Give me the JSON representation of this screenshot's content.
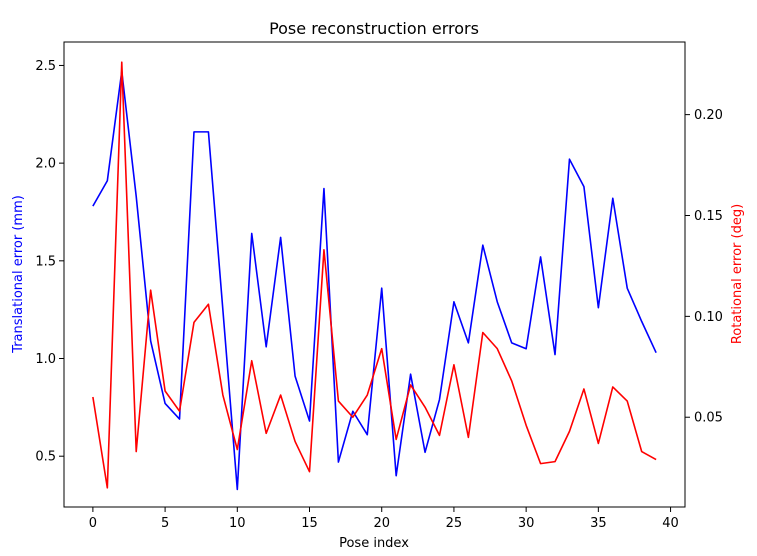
{
  "chart_data": {
    "type": "line",
    "title": "Pose reconstruction errors",
    "xlabel": "Pose index",
    "xlim": [
      -2,
      41
    ],
    "xticks": [
      0,
      5,
      10,
      15,
      20,
      25,
      30,
      35,
      40
    ],
    "y_left": {
      "label": "Translational error (mm)",
      "color": "#0000ff",
      "lim": [
        0.24,
        2.62
      ],
      "ticks": [
        0.5,
        1.0,
        1.5,
        2.0,
        2.5
      ],
      "tick_labels": [
        "0.5",
        "1.0",
        "1.5",
        "2.0",
        "2.5"
      ]
    },
    "y_right": {
      "label": "Rotational error (deg)",
      "color": "#ff0000",
      "lim": [
        0.0055,
        0.236
      ],
      "ticks": [
        0.05,
        0.1,
        0.15,
        0.2
      ],
      "tick_labels": [
        "0.05",
        "0.10",
        "0.15",
        "0.20"
      ]
    },
    "grid": false,
    "series": [
      {
        "axis": "left",
        "color": "#0000ff",
        "x": [
          0,
          1,
          2,
          3,
          4,
          5,
          6,
          7,
          8,
          9,
          10,
          11,
          12,
          13,
          14,
          15,
          16,
          17,
          18,
          19,
          20,
          21,
          22,
          23,
          24,
          25,
          26,
          27,
          28,
          29,
          30,
          31,
          32,
          33,
          34,
          35,
          36,
          37,
          38,
          39
        ],
        "values": [
          1.78,
          1.91,
          2.47,
          1.83,
          1.09,
          0.77,
          0.69,
          2.16,
          2.16,
          1.25,
          0.33,
          1.64,
          1.06,
          1.62,
          0.91,
          0.68,
          1.87,
          0.47,
          0.73,
          0.61,
          1.36,
          0.4,
          0.92,
          0.52,
          0.79,
          1.29,
          1.08,
          1.58,
          1.29,
          1.08,
          1.05,
          1.52,
          1.02,
          2.02,
          1.88,
          1.26,
          1.82,
          1.36,
          1.19,
          1.03
        ]
      },
      {
        "axis": "right",
        "color": "#ff0000",
        "x": [
          0,
          1,
          2,
          3,
          4,
          5,
          6,
          7,
          8,
          9,
          10,
          11,
          12,
          13,
          14,
          15,
          16,
          17,
          18,
          19,
          20,
          21,
          22,
          23,
          24,
          25,
          26,
          27,
          28,
          29,
          30,
          31,
          32,
          33,
          34,
          35,
          36,
          37,
          38,
          39
        ],
        "values": [
          0.06,
          0.015,
          0.226,
          0.033,
          0.113,
          0.063,
          0.053,
          0.097,
          0.106,
          0.061,
          0.034,
          0.078,
          0.042,
          0.061,
          0.038,
          0.023,
          0.133,
          0.058,
          0.05,
          0.061,
          0.084,
          0.039,
          0.066,
          0.055,
          0.041,
          0.076,
          0.04,
          0.092,
          0.084,
          0.068,
          0.046,
          0.027,
          0.028,
          0.043,
          0.064,
          0.037,
          0.065,
          0.058,
          0.033,
          0.029
        ]
      }
    ]
  }
}
